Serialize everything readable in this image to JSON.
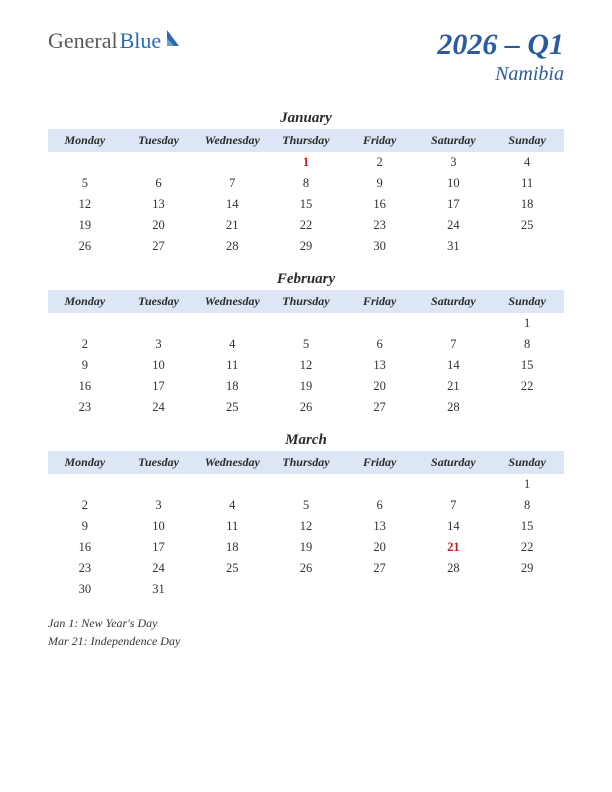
{
  "logo": {
    "text1": "General",
    "text2": "Blue"
  },
  "title": {
    "main": "2026 – Q1",
    "sub": "Namibia"
  },
  "colors": {
    "accent": "#2a5b9c",
    "header_bg": "#dce6f4",
    "holiday": "#c02020",
    "text": "#333333"
  },
  "day_headers": [
    "Monday",
    "Tuesday",
    "Wednesday",
    "Thursday",
    "Friday",
    "Saturday",
    "Sunday"
  ],
  "months": [
    {
      "name": "January",
      "rows": [
        [
          "",
          "",
          "",
          "1",
          "2",
          "3",
          "4"
        ],
        [
          "5",
          "6",
          "7",
          "8",
          "9",
          "10",
          "11"
        ],
        [
          "12",
          "13",
          "14",
          "15",
          "16",
          "17",
          "18"
        ],
        [
          "19",
          "20",
          "21",
          "22",
          "23",
          "24",
          "25"
        ],
        [
          "26",
          "27",
          "28",
          "29",
          "30",
          "31",
          ""
        ]
      ],
      "holidays": [
        [
          0,
          3
        ]
      ]
    },
    {
      "name": "February",
      "rows": [
        [
          "",
          "",
          "",
          "",
          "",
          "",
          "1"
        ],
        [
          "2",
          "3",
          "4",
          "5",
          "6",
          "7",
          "8"
        ],
        [
          "9",
          "10",
          "11",
          "12",
          "13",
          "14",
          "15"
        ],
        [
          "16",
          "17",
          "18",
          "19",
          "20",
          "21",
          "22"
        ],
        [
          "23",
          "24",
          "25",
          "26",
          "27",
          "28",
          ""
        ]
      ],
      "holidays": []
    },
    {
      "name": "March",
      "rows": [
        [
          "",
          "",
          "",
          "",
          "",
          "",
          "1"
        ],
        [
          "2",
          "3",
          "4",
          "5",
          "6",
          "7",
          "8"
        ],
        [
          "9",
          "10",
          "11",
          "12",
          "13",
          "14",
          "15"
        ],
        [
          "16",
          "17",
          "18",
          "19",
          "20",
          "21",
          "22"
        ],
        [
          "23",
          "24",
          "25",
          "26",
          "27",
          "28",
          "29"
        ],
        [
          "30",
          "31",
          "",
          "",
          "",
          "",
          ""
        ]
      ],
      "holidays": [
        [
          3,
          5
        ]
      ]
    }
  ],
  "notes": [
    "Jan 1: New Year's Day",
    "Mar 21: Independence Day"
  ]
}
